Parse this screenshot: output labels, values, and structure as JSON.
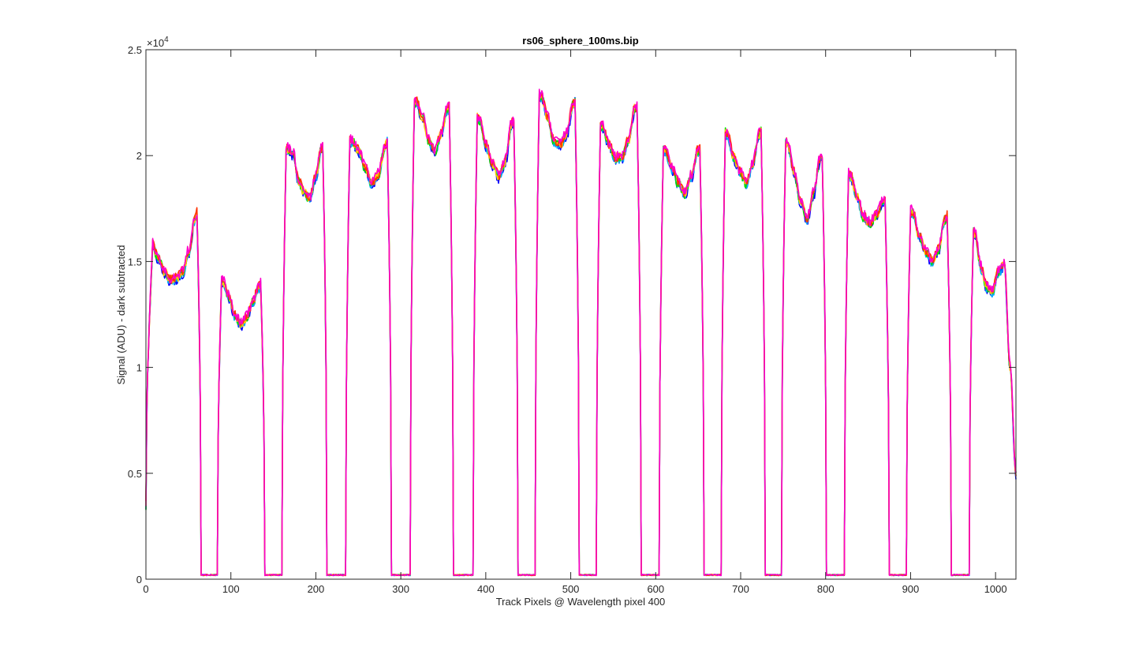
{
  "chart_data": {
    "type": "line",
    "title": "rs06_sphere_100ms.bip",
    "xlabel": "Track Pixels @ Wavelength pixel 400",
    "ylabel": "Signal (ADU) - dark subtracted",
    "y_exponent_label": "×10",
    "y_exponent_power": "4",
    "xlim": [
      0,
      1024
    ],
    "ylim": [
      0,
      2.5
    ],
    "x_ticks": [
      0,
      100,
      200,
      300,
      400,
      500,
      600,
      700,
      800,
      900,
      1000
    ],
    "x_tick_labels": [
      "0",
      "100",
      "200",
      "300",
      "400",
      "500",
      "600",
      "700",
      "800",
      "900",
      "1000"
    ],
    "y_ticks": [
      0,
      0.5,
      1,
      1.5,
      2,
      2.5
    ],
    "y_tick_labels": [
      "0",
      "0.5",
      "1",
      "1.5",
      "2",
      "2.5"
    ],
    "grid": false,
    "num_series": 6,
    "series_colors": [
      "#0000ff",
      "#00aaff",
      "#00dd00",
      "#ffcc00",
      "#ff3300",
      "#ff00cc"
    ],
    "bands": [
      {
        "x0": 0,
        "x1": 65,
        "y": [
          1.55,
          1.58,
          1.52,
          1.45,
          1.41,
          1.42,
          1.45,
          1.55,
          1.7,
          1.82
        ]
      },
      {
        "x0": 84,
        "x1": 140,
        "y": [
          1.42,
          1.4,
          1.33,
          1.24,
          1.2,
          1.24,
          1.31,
          1.38,
          1.47
        ]
      },
      {
        "x0": 160,
        "x1": 213,
        "y": [
          2.01,
          2.03,
          2.01,
          1.88,
          1.82,
          1.8,
          1.9,
          2.03,
          2.18
        ]
      },
      {
        "x0": 235,
        "x1": 289,
        "y": [
          2.07,
          2.07,
          2.02,
          1.94,
          1.87,
          1.91,
          2.04,
          2.15
        ]
      },
      {
        "x0": 311,
        "x1": 362,
        "y": [
          2.27,
          2.25,
          2.18,
          2.07,
          2.02,
          2.1,
          2.22,
          2.25
        ]
      },
      {
        "x0": 385,
        "x1": 438,
        "y": [
          2.2,
          2.17,
          2.05,
          1.96,
          1.9,
          1.97,
          2.15,
          2.2
        ]
      },
      {
        "x0": 458,
        "x1": 510,
        "y": [
          2.3,
          2.28,
          2.18,
          2.07,
          2.05,
          2.1,
          2.24,
          2.33
        ]
      },
      {
        "x0": 530,
        "x1": 583,
        "y": [
          2.15,
          2.14,
          2.05,
          1.99,
          1.99,
          2.07,
          2.22,
          2.24
        ]
      },
      {
        "x0": 604,
        "x1": 657,
        "y": [
          2.04,
          2.02,
          1.94,
          1.87,
          1.82,
          1.9,
          2.02,
          2.05
        ]
      },
      {
        "x0": 677,
        "x1": 729,
        "y": [
          2.15,
          2.1,
          1.99,
          1.92,
          1.87,
          1.96,
          2.1,
          2.16
        ]
      },
      {
        "x0": 748,
        "x1": 801,
        "y": [
          2.1,
          2.05,
          1.92,
          1.78,
          1.7,
          1.82,
          1.98,
          2.03
        ]
      },
      {
        "x0": 822,
        "x1": 875,
        "y": [
          1.95,
          1.9,
          1.8,
          1.71,
          1.68,
          1.72,
          1.78,
          1.8
        ]
      },
      {
        "x0": 895,
        "x1": 948,
        "y": [
          1.77,
          1.73,
          1.62,
          1.55,
          1.5,
          1.56,
          1.7,
          1.75
        ]
      },
      {
        "x0": 969,
        "x1": 1024,
        "y": [
          1.69,
          1.63,
          1.47,
          1.38,
          1.36,
          1.45,
          1.49,
          1.0,
          0.5
        ]
      }
    ],
    "trough_level": 0.02,
    "start_value": 0.35
  }
}
